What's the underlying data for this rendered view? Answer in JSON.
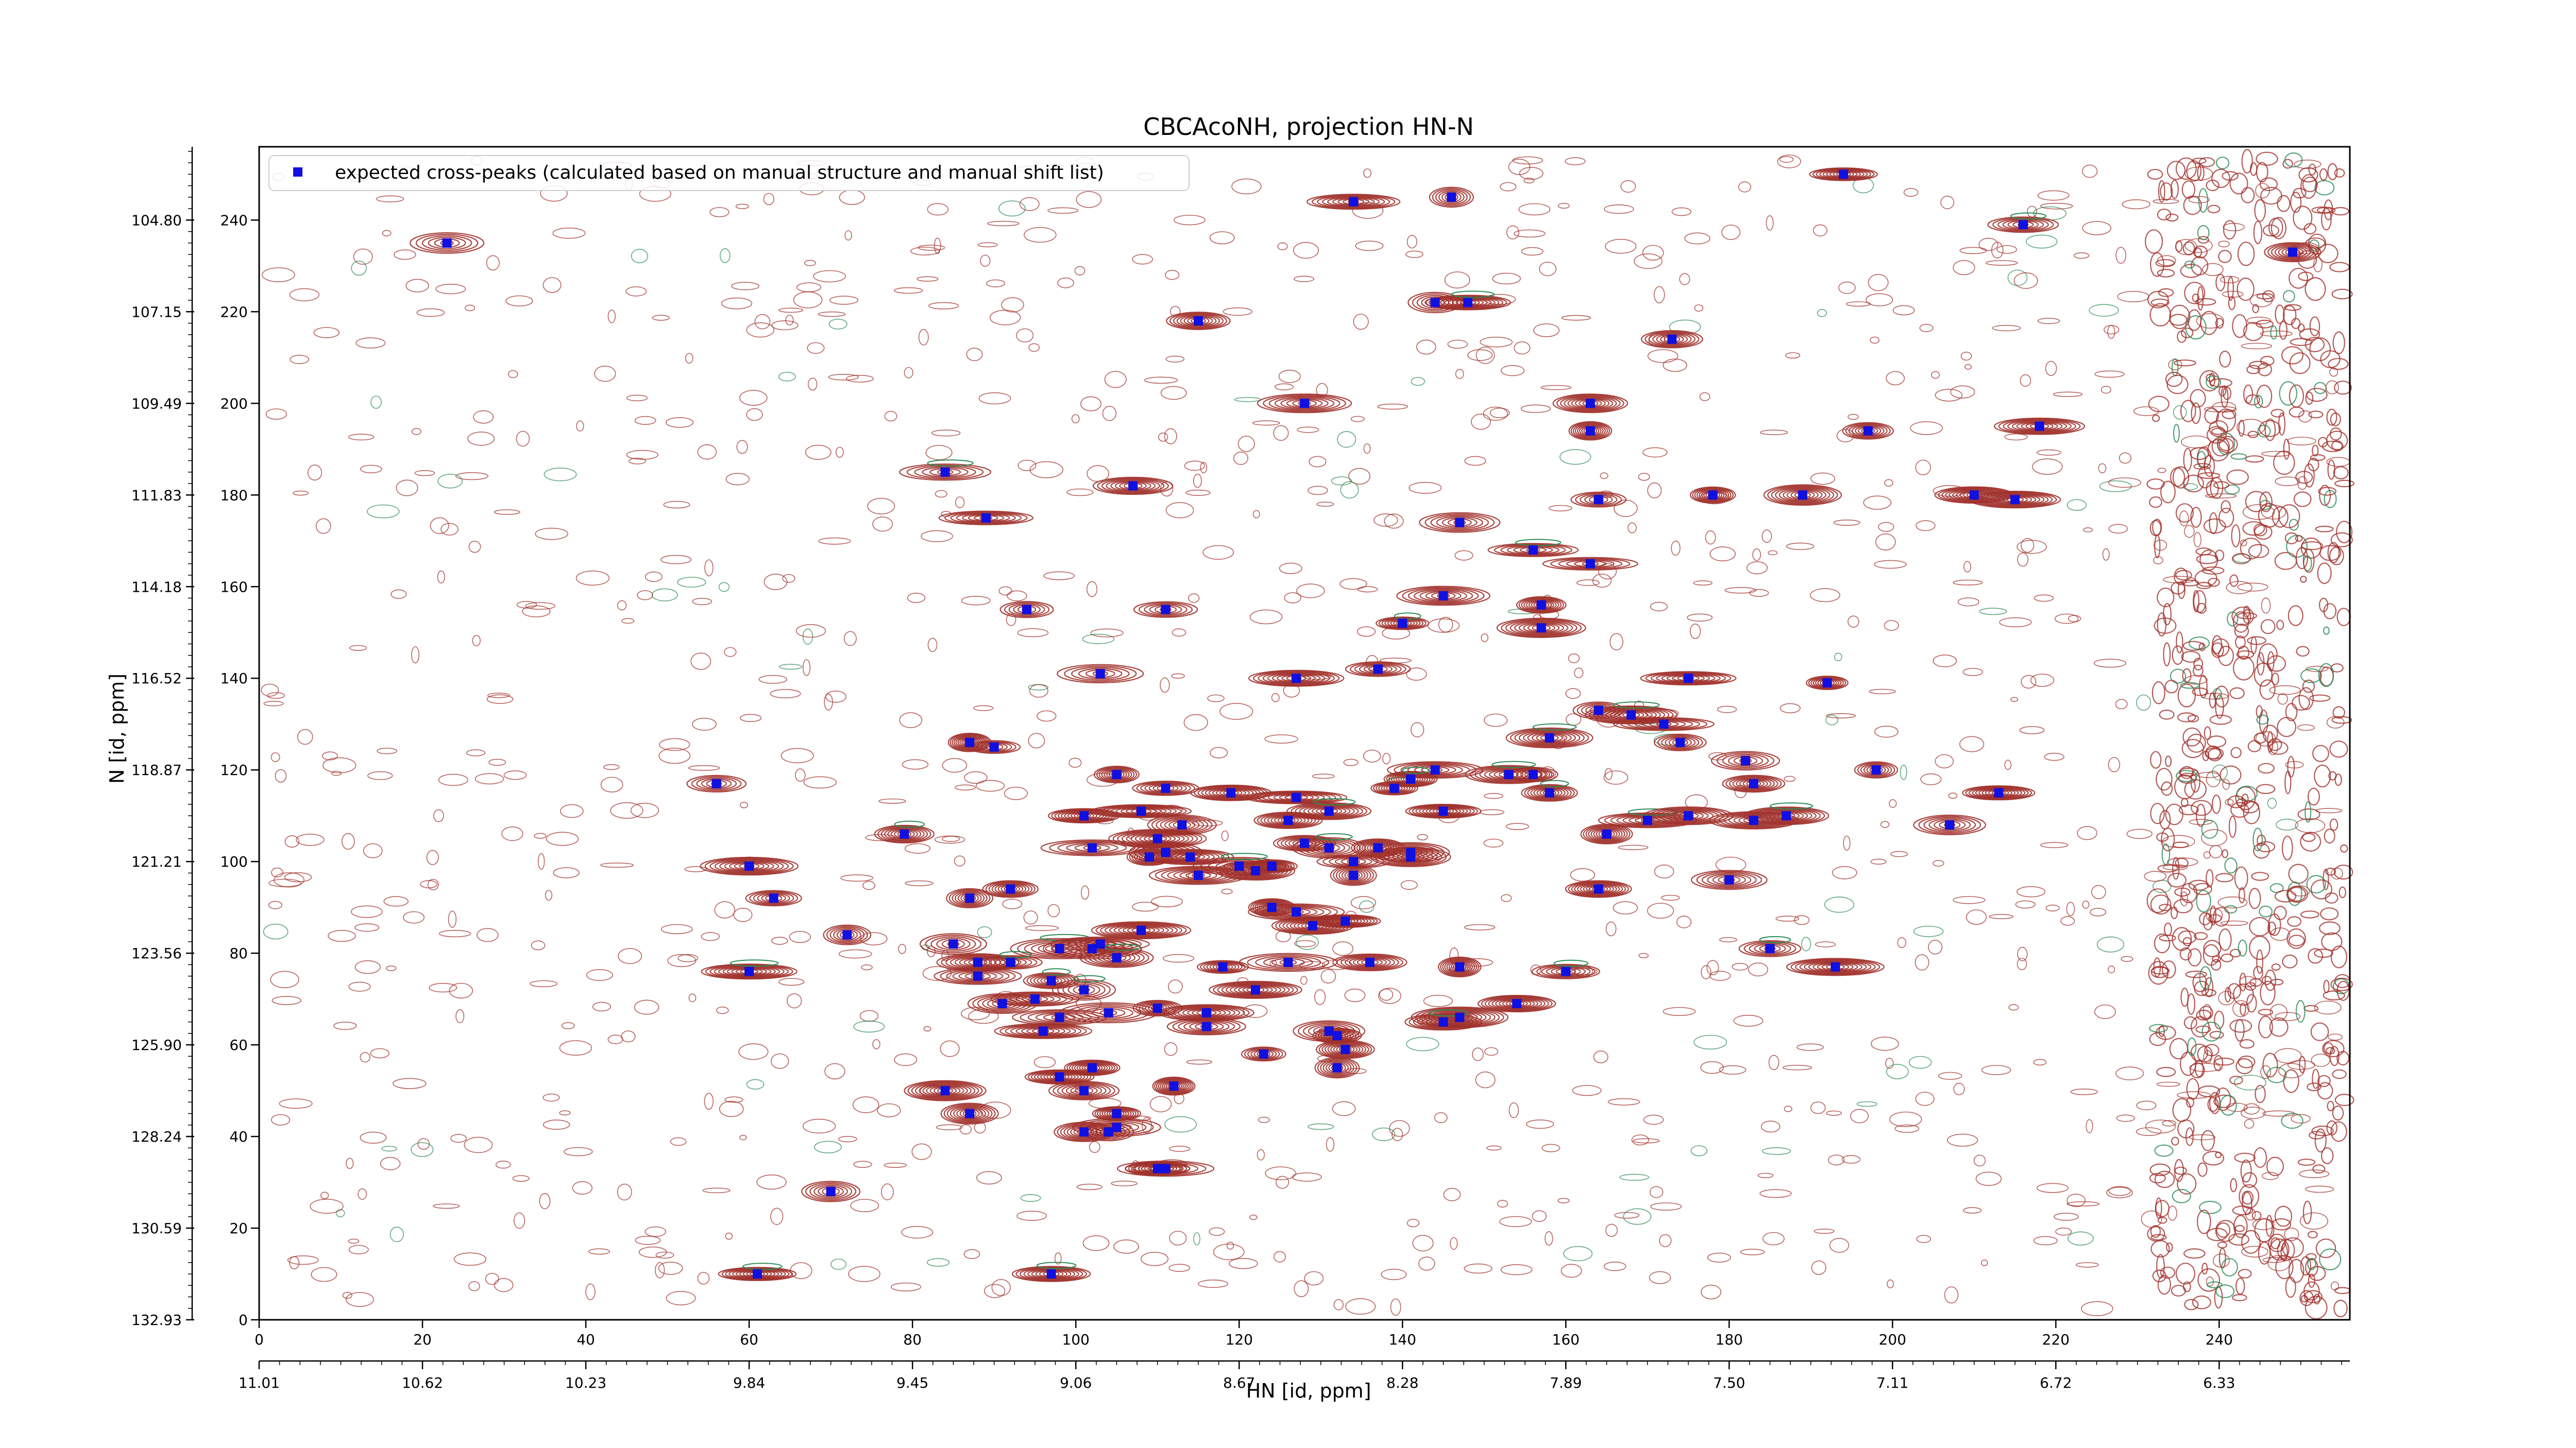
{
  "chart_data": {
    "type": "scatter",
    "title": "CBCAcoNH, projection HN-N",
    "xlabel": "HN [id, ppm]",
    "ylabel": "N [id, ppm]",
    "xlim": [
      0,
      256
    ],
    "ylim": [
      0,
      256
    ],
    "x_index_ticks": [
      "0",
      "20",
      "40",
      "60",
      "80",
      "100",
      "120",
      "140",
      "160",
      "180",
      "200",
      "220",
      "240"
    ],
    "x_ppm_ticks": [
      "11.01",
      "10.62",
      "10.23",
      "9.84",
      "9.45",
      "9.06",
      "8.67",
      "8.28",
      "7.89",
      "7.50",
      "7.11",
      "6.72",
      "6.33"
    ],
    "y_index_ticks": [
      "0",
      "20",
      "40",
      "60",
      "80",
      "100",
      "120",
      "140",
      "160",
      "180",
      "200",
      "220",
      "240"
    ],
    "y_ppm_ticks": [
      "132.93",
      "130.59",
      "128.24",
      "125.90",
      "123.56",
      "121.21",
      "118.87",
      "116.52",
      "114.18",
      "111.83",
      "109.49",
      "107.15",
      "104.80"
    ],
    "legend": {
      "position": "top-left",
      "label": "expected cross-peaks (calculated based on manual structure and manual shift list)"
    },
    "colors": {
      "marker": "#1010e0",
      "positive_contour": "#a0302a",
      "negative_contour": "#2e8b57"
    },
    "series": [
      {
        "name": "expected cross-peaks (calculated based on manual structure and manual shift list)",
        "points": [
          [
            23,
            235
          ],
          [
            134,
            244
          ],
          [
            146,
            245
          ],
          [
            194,
            250
          ],
          [
            216,
            239
          ],
          [
            249,
            233
          ],
          [
            115,
            218
          ],
          [
            144,
            222
          ],
          [
            148,
            222
          ],
          [
            173,
            214
          ],
          [
            128,
            200
          ],
          [
            163,
            200
          ],
          [
            197,
            194
          ],
          [
            218,
            195
          ],
          [
            163,
            194
          ],
          [
            84,
            185
          ],
          [
            107,
            182
          ],
          [
            164,
            179
          ],
          [
            178,
            180
          ],
          [
            189,
            180
          ],
          [
            210,
            180
          ],
          [
            215,
            179
          ],
          [
            89,
            175
          ],
          [
            147,
            174
          ],
          [
            156,
            168
          ],
          [
            163,
            165
          ],
          [
            94,
            155
          ],
          [
            111,
            155
          ],
          [
            145,
            158
          ],
          [
            157,
            156
          ],
          [
            140,
            152
          ],
          [
            157,
            151
          ],
          [
            103,
            141
          ],
          [
            127,
            140
          ],
          [
            137,
            142
          ],
          [
            175,
            140
          ],
          [
            192,
            139
          ],
          [
            164,
            133
          ],
          [
            168,
            132
          ],
          [
            172,
            130
          ],
          [
            158,
            127
          ],
          [
            174,
            126
          ],
          [
            87,
            126
          ],
          [
            90,
            125
          ],
          [
            56,
            117
          ],
          [
            105,
            119
          ],
          [
            144,
            120
          ],
          [
            153,
            119
          ],
          [
            156,
            119
          ],
          [
            182,
            122
          ],
          [
            183,
            117
          ],
          [
            111,
            116
          ],
          [
            139,
            116
          ],
          [
            141,
            118
          ],
          [
            158,
            115
          ],
          [
            198,
            120
          ],
          [
            213,
            115
          ],
          [
            119,
            115
          ],
          [
            127,
            114
          ],
          [
            101,
            110
          ],
          [
            108,
            111
          ],
          [
            131,
            111
          ],
          [
            145,
            111
          ],
          [
            165,
            106
          ],
          [
            170,
            109
          ],
          [
            175,
            110
          ],
          [
            183,
            109
          ],
          [
            187,
            110
          ],
          [
            207,
            108
          ],
          [
            79,
            106
          ],
          [
            113,
            108
          ],
          [
            126,
            109
          ],
          [
            110,
            105
          ],
          [
            102,
            103
          ],
          [
            111,
            102
          ],
          [
            109,
            101
          ],
          [
            114,
            101
          ],
          [
            128,
            104
          ],
          [
            131,
            103
          ],
          [
            137,
            103
          ],
          [
            60,
            99
          ],
          [
            120,
            99
          ],
          [
            124,
            99
          ],
          [
            134,
            100
          ],
          [
            141,
            101
          ],
          [
            141,
            102
          ],
          [
            115,
            97
          ],
          [
            122,
            98
          ],
          [
            134,
            97
          ],
          [
            164,
            94
          ],
          [
            180,
            96
          ],
          [
            63,
            92
          ],
          [
            92,
            94
          ],
          [
            87,
            92
          ],
          [
            124,
            90
          ],
          [
            127,
            89
          ],
          [
            129,
            86
          ],
          [
            133,
            87
          ],
          [
            72,
            84
          ],
          [
            85,
            82
          ],
          [
            98,
            81
          ],
          [
            102,
            81
          ],
          [
            103,
            82
          ],
          [
            108,
            85
          ],
          [
            88,
            78
          ],
          [
            92,
            78
          ],
          [
            105,
            79
          ],
          [
            118,
            77
          ],
          [
            126,
            78
          ],
          [
            136,
            78
          ],
          [
            147,
            77
          ],
          [
            160,
            76
          ],
          [
            185,
            81
          ],
          [
            193,
            77
          ],
          [
            60,
            76
          ],
          [
            88,
            75
          ],
          [
            97,
            74
          ],
          [
            101,
            72
          ],
          [
            122,
            72
          ],
          [
            95,
            70
          ],
          [
            91,
            69
          ],
          [
            104,
            67
          ],
          [
            110,
            68
          ],
          [
            116,
            67
          ],
          [
            154,
            69
          ],
          [
            96,
            63
          ],
          [
            116,
            64
          ],
          [
            131,
            63
          ],
          [
            147,
            66
          ],
          [
            102,
            55
          ],
          [
            123,
            58
          ],
          [
            133,
            59
          ],
          [
            132,
            55
          ],
          [
            98,
            53
          ],
          [
            101,
            50
          ],
          [
            84,
            50
          ],
          [
            87,
            45
          ],
          [
            105,
            45
          ],
          [
            112,
            51
          ],
          [
            101,
            41
          ],
          [
            104,
            41
          ],
          [
            105,
            42
          ],
          [
            110,
            33
          ],
          [
            111,
            33
          ],
          [
            70,
            28
          ],
          [
            61,
            10
          ],
          [
            97,
            10
          ],
          [
            145,
            65
          ],
          [
            132,
            62
          ],
          [
            98,
            66
          ]
        ]
      }
    ]
  }
}
